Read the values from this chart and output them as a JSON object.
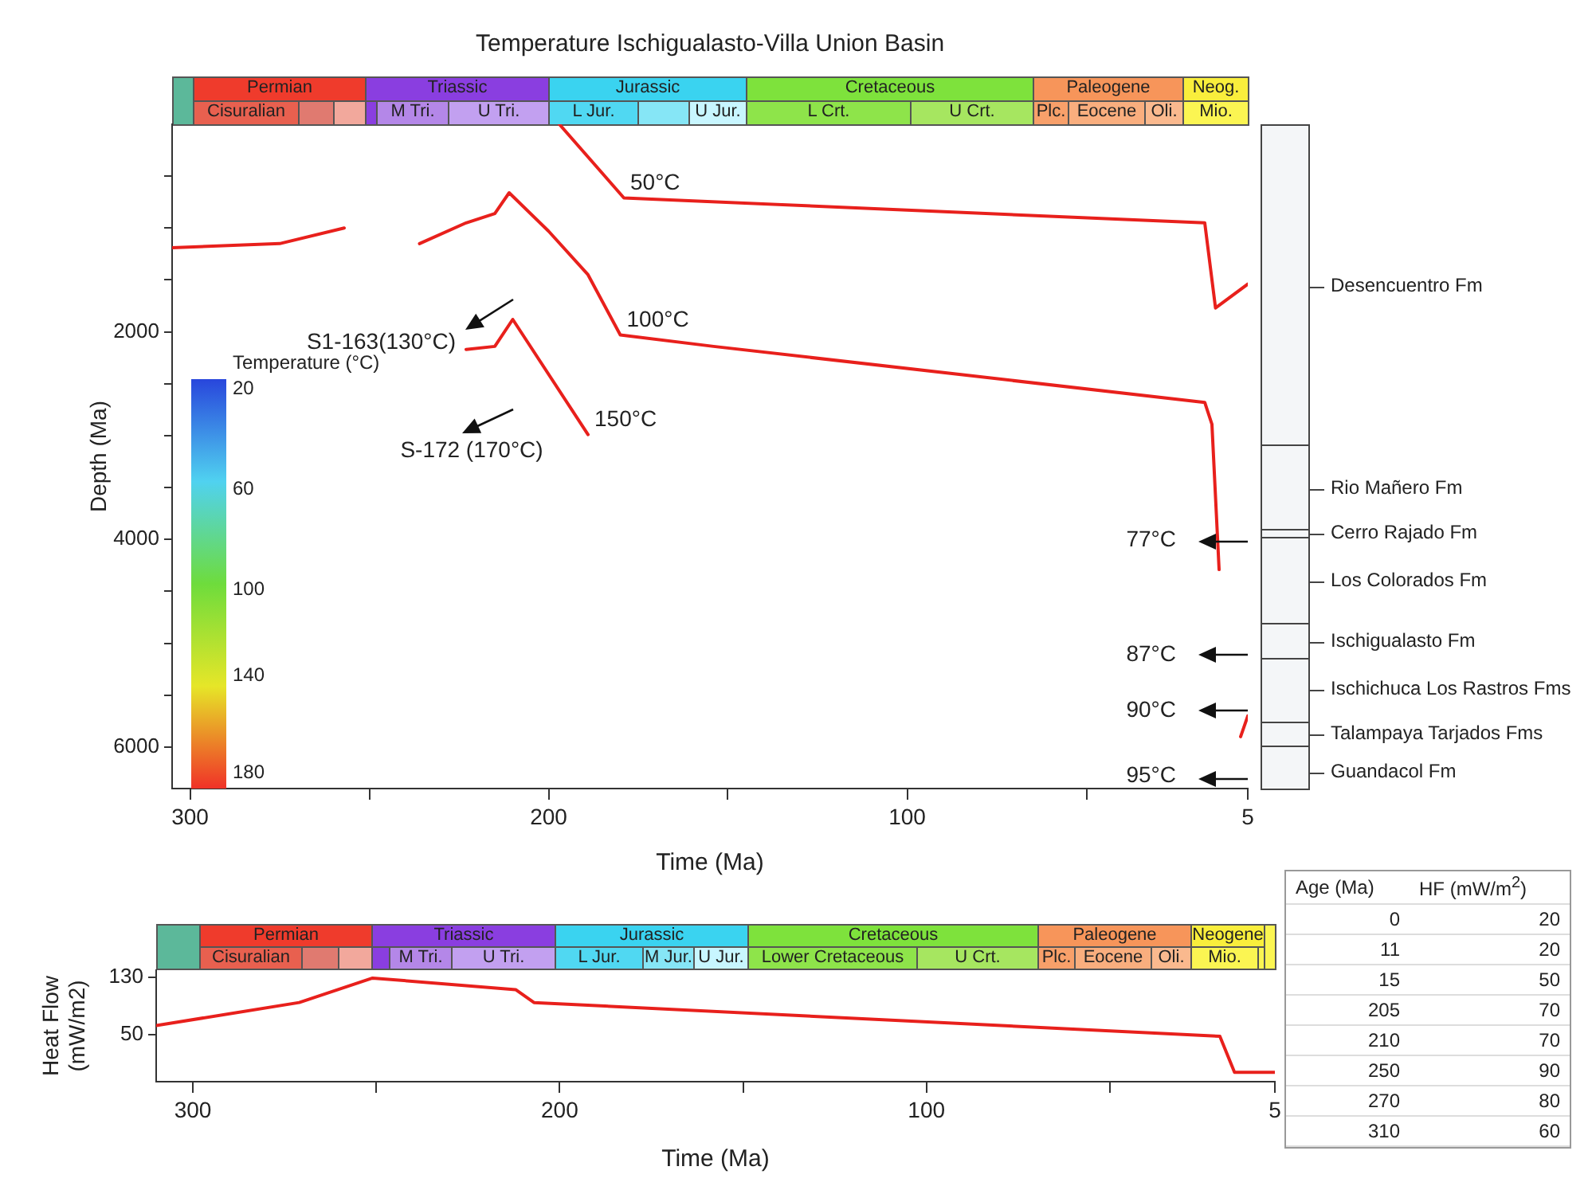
{
  "chart_data": [
    {
      "type": "other",
      "annotations": [
        "Permian",
        "Triassic",
        "Jurassic",
        "Cretaceous",
        "Paleogene",
        "Neog.",
        "Cisuralian",
        "M Tri.",
        "U Tri.",
        "L Jur.",
        "U Jur.",
        "L Crt.",
        "U Crt.",
        "Plc.",
        "Eocene",
        "Oli.",
        "Mio."
      ]
    },
    {
      "type": "line",
      "title": "Temperature Ischigualasto-Villa Union Basin",
      "xlabel": "Time (Ma)",
      "ylabel": "Depth (Ma)",
      "xlim": [
        305,
        5
      ],
      "xticks": [
        300,
        {
          "value": 250,
          "label": null
        },
        200,
        {
          "value": 150,
          "label": null
        },
        100,
        {
          "value": 50,
          "label": null
        },
        5
      ],
      "ylim": [
        6400,
        0
      ],
      "yticks": [
        {
          "value": 500,
          "label": null
        },
        {
          "value": 1000,
          "label": null
        },
        {
          "value": 1500,
          "label": null
        },
        2000,
        {
          "value": 2500,
          "label": null
        },
        {
          "value": 3000,
          "label": null
        },
        {
          "value": 3500,
          "label": null
        },
        4000,
        {
          "value": 4500,
          "label": null
        },
        {
          "value": 5000,
          "label": null
        },
        {
          "value": 5500,
          "label": null
        },
        6000
      ],
      "series": [
        {
          "name": "50°C",
          "color": "#e8201c",
          "x": [
            197,
            179,
            17,
            14,
            5
          ],
          "values": [
            0,
            710,
            950,
            1770,
            1540
          ]
        },
        {
          "name": "100°C",
          "color": "#e8201c",
          "x": [
            305,
            275,
            257,
            250,
            236,
            223,
            215,
            211,
            200,
            189,
            180,
            154,
            17,
            15,
            13
          ],
          "values": [
            1190,
            1150,
            1000,
            null,
            1150,
            950,
            860,
            660,
            1030,
            1450,
            2030,
            2140,
            2680,
            2890,
            4290
          ]
        },
        {
          "name": "150°C",
          "color": "#e8201c",
          "x": [
            223,
            215,
            210,
            189,
            100,
            7,
            5
          ],
          "values": [
            2170,
            2140,
            1880,
            2990,
            null,
            5900,
            5700
          ]
        }
      ],
      "annotations": [
        "Temperature (°C)",
        "20",
        "60",
        "100",
        "140",
        "180",
        "S1-163(130°C)",
        "S-172 (170°C)",
        "77°C",
        "87°C",
        "90°C",
        "95°C"
      ]
    },
    {
      "type": "other",
      "annotations": [
        "Desencuentro Fm",
        "Rio Mañero Fm",
        "Cerro Rajado Fm",
        "Los Colorados Fm",
        "Ischigualasto Fm",
        "Ischichuca Los Rastros Fms",
        "Talampaya Tarjados Fms",
        "Guandacol Fm"
      ]
    },
    {
      "type": "other",
      "annotations": [
        "Permian",
        "Triassic",
        "Jurassic",
        "Cretaceous",
        "Paleogene",
        "Neogene",
        "Cisuralian",
        "M Tri.",
        "U Tri.",
        "L Jur.",
        "M Jur.",
        "U Jur.",
        "Lower Cretaceous",
        "U Crt.",
        "Plc.",
        "Eocene",
        "Oli.",
        "Mio."
      ]
    },
    {
      "type": "line",
      "xlabel": "Time (Ma)",
      "ylabel": "Heat Flow\n(mW/m2)",
      "xlim": [
        310,
        5
      ],
      "xticks": [
        300,
        {
          "value": 250,
          "label": null
        },
        200,
        {
          "value": 150,
          "label": null
        },
        100,
        {
          "value": 50,
          "label": null
        },
        5
      ],
      "ylim": [
        -15,
        140
      ],
      "yticks": [
        50,
        130
      ],
      "x": [
        310,
        271,
        251,
        212,
        207,
        20,
        16,
        5
      ],
      "values": [
        63,
        95,
        129,
        113,
        95,
        48,
        -2,
        -2
      ],
      "color": "#e8201c"
    },
    {
      "type": "other",
      "annotations": [
        "Age (Ma)",
        "HF (mW/m$^{2}$)",
        "0",
        "20",
        "11",
        "20",
        "15",
        "50",
        "205",
        "70",
        "210",
        "70",
        "250",
        "90",
        "270",
        "80",
        "310",
        "60"
      ]
    }
  ]
}
